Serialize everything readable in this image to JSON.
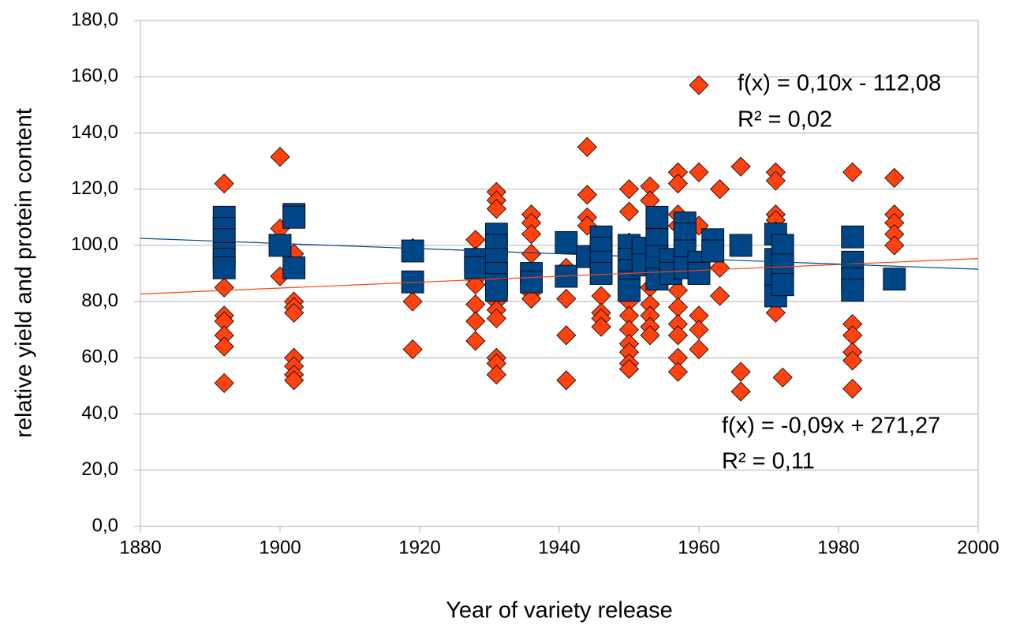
{
  "chart_data": {
    "type": "scatter",
    "xlabel": "Year of variety release",
    "ylabel": "relative yield and protein content",
    "xlim": [
      1880,
      2000
    ],
    "xticks": [
      1880,
      1900,
      1920,
      1940,
      1960,
      1980,
      2000
    ],
    "ylim": [
      0,
      180
    ],
    "yticks": [
      {
        "value": 0,
        "label": "0,0"
      },
      {
        "value": 20,
        "label": "20,0"
      },
      {
        "value": 40,
        "label": "40,0"
      },
      {
        "value": 60,
        "label": "60,0"
      },
      {
        "value": 80,
        "label": "80,0"
      },
      {
        "value": 100,
        "label": "100,0"
      },
      {
        "value": 120,
        "label": "120,0"
      },
      {
        "value": 140,
        "label": "140,0"
      },
      {
        "value": 160,
        "label": "160,0"
      },
      {
        "value": 180,
        "label": "180,0"
      }
    ],
    "grid": true,
    "series": [
      {
        "color": "#ff420e",
        "marker": "diamond",
        "x": [
          1892,
          1892,
          1892,
          1892,
          1892,
          1892,
          1892,
          1900,
          1900,
          1900,
          1902,
          1902,
          1902,
          1902,
          1902,
          1902,
          1902,
          1902,
          1919,
          1919,
          1919,
          1928,
          1928,
          1928,
          1928,
          1928,
          1928,
          1928,
          1931,
          1931,
          1931,
          1931,
          1931,
          1931,
          1931,
          1931,
          1931,
          1931,
          1931,
          1931,
          1936,
          1936,
          1936,
          1936,
          1936,
          1936,
          1936,
          1941,
          1941,
          1941,
          1941,
          1944,
          1944,
          1944,
          1944,
          1946,
          1946,
          1946,
          1946,
          1950,
          1950,
          1950,
          1950,
          1950,
          1950,
          1950,
          1950,
          1950,
          1950,
          1953,
          1953,
          1953,
          1953,
          1953,
          1953,
          1953,
          1957,
          1957,
          1957,
          1957,
          1957,
          1957,
          1957,
          1957,
          1957,
          1957,
          1960,
          1960,
          1960,
          1960,
          1960,
          1960,
          1963,
          1963,
          1963,
          1966,
          1966,
          1966,
          1971,
          1971,
          1971,
          1971,
          1971,
          1971,
          1971,
          1971,
          1972,
          1982,
          1982,
          1982,
          1982,
          1982,
          1982,
          1988,
          1988,
          1988,
          1988,
          1988
        ],
        "values": [
          122,
          85,
          75,
          73,
          68,
          64,
          51,
          131.5,
          106,
          89,
          97,
          80,
          78,
          76,
          60,
          57,
          54,
          52,
          99,
          80,
          63,
          102,
          96,
          88,
          86,
          79,
          73,
          66,
          119,
          116,
          113,
          98,
          90,
          84,
          80,
          77,
          74,
          60,
          58,
          54,
          111,
          108,
          104,
          97,
          88,
          83,
          81,
          92,
          81,
          68,
          52,
          135,
          118,
          110,
          107,
          82,
          76,
          74,
          71,
          120,
          112,
          101,
          80,
          75,
          70,
          65,
          62,
          58,
          56,
          121,
          116,
          85,
          79,
          75,
          71,
          68,
          126,
          122,
          111,
          107,
          84,
          78,
          72,
          68,
          60,
          55,
          157,
          126,
          107,
          75,
          70,
          63,
          120,
          92,
          82,
          128,
          55,
          48,
          126,
          123,
          111,
          109,
          105,
          85,
          80,
          76,
          53,
          126,
          72,
          68,
          62,
          59,
          49,
          124,
          111,
          108,
          104,
          100
        ],
        "trendline": {
          "x": [
            1880,
            2000
          ],
          "values": [
            82.7,
            95.3
          ]
        },
        "equation": "f(x) = 0,10x - 112,08",
        "r2": "R² = 0,02"
      },
      {
        "color": "#004586",
        "marker": "square",
        "x": [
          1892,
          1892,
          1892,
          1892,
          1892,
          1892,
          1900,
          1902,
          1902,
          1902,
          1919,
          1919,
          1928,
          1928,
          1931,
          1931,
          1931,
          1931,
          1931,
          1931,
          1936,
          1936,
          1941,
          1941,
          1944,
          1946,
          1946,
          1946,
          1946,
          1950,
          1950,
          1950,
          1950,
          1950,
          1952,
          1952,
          1954,
          1954,
          1954,
          1954,
          1954,
          1956,
          1956,
          1958,
          1958,
          1958,
          1958,
          1960,
          1960,
          1962,
          1962,
          1966,
          1971,
          1971,
          1971,
          1971,
          1972,
          1972,
          1972,
          1982,
          1982,
          1982,
          1982,
          1988
        ],
        "values": [
          110,
          106,
          102,
          97,
          95,
          92,
          100,
          111,
          110,
          92,
          98,
          87,
          95,
          92,
          104,
          100,
          95,
          90,
          86,
          84,
          90,
          87,
          101,
          89,
          96,
          103,
          99,
          94,
          90,
          100,
          95,
          91,
          87,
          84,
          99,
          93,
          110,
          102,
          96,
          92,
          88,
          95,
          90,
          108,
          104,
          98,
          92,
          94,
          90,
          102,
          98,
          100,
          104,
          95,
          88,
          82,
          100,
          93,
          86,
          103,
          94,
          88,
          84,
          88
        ],
        "trendline": {
          "x": [
            1880,
            2000
          ],
          "values": [
            102.5,
            91.5
          ]
        },
        "equation": "f(x) = -0,09x + 271,27",
        "r2": "R² = 0,11"
      }
    ]
  }
}
